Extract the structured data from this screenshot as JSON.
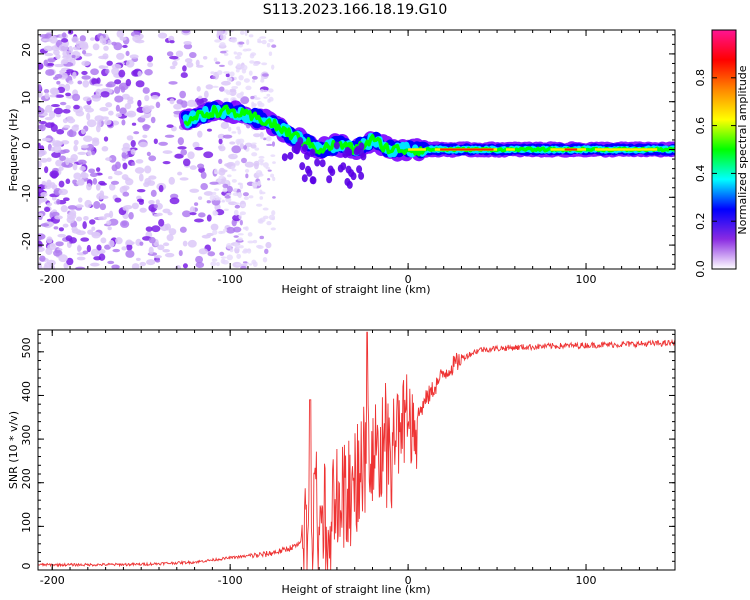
{
  "title": "S113.2023.166.18.19.G10",
  "colors": {
    "snr_line": "#ee3333",
    "axis": "#000000"
  },
  "chart_data": [
    {
      "type": "heatmap",
      "name": "spectrogram",
      "xlabel": "Height of straight line (km)",
      "ylabel": "Frequency (Hz)",
      "xlim": [
        -208,
        150
      ],
      "ylim": [
        -25,
        25
      ],
      "xticks": [
        -200,
        -100,
        0,
        100
      ],
      "xtick_labels": [
        "-200",
        "-100",
        "0",
        "100"
      ],
      "yticks": [
        -20,
        -10,
        0,
        10,
        20
      ],
      "ytick_labels": [
        "-20",
        "-10",
        "0",
        "10",
        "20"
      ],
      "colorbar": {
        "label": "Normalized spectral amplitude",
        "range": [
          0,
          1
        ],
        "ticks": [
          0,
          0.2,
          0.4,
          0.6,
          0.8
        ],
        "tick_labels": [
          "0.0",
          "0.2",
          "0.4",
          "0.6",
          "0.8"
        ],
        "stops": [
          "#ffffff",
          "#8a2be2",
          "#0000ff",
          "#00ffff",
          "#00ff00",
          "#ffff00",
          "#ff8800",
          "#ff0000",
          "#ff1493"
        ]
      },
      "ridge": {
        "description_points_km_hz": [
          [
            -125,
            6
          ],
          [
            -110,
            8
          ],
          [
            -100,
            8
          ],
          [
            -90,
            7
          ],
          [
            -80,
            6
          ],
          [
            -70,
            4
          ],
          [
            -60,
            2
          ],
          [
            -50,
            0
          ],
          [
            -40,
            1
          ],
          [
            -30,
            0
          ],
          [
            -20,
            2
          ],
          [
            -10,
            0
          ],
          [
            0,
            0
          ],
          [
            20,
            0
          ],
          [
            40,
            0
          ],
          [
            60,
            0
          ],
          [
            80,
            0
          ],
          [
            100,
            0
          ],
          [
            120,
            0
          ],
          [
            150,
            0
          ]
        ]
      }
    },
    {
      "type": "line",
      "name": "snr",
      "xlabel": "Height of straight line (km)",
      "ylabel": "SNR (10 * v/v)",
      "xlim": [
        -208,
        150
      ],
      "ylim": [
        0,
        550
      ],
      "xticks": [
        -200,
        -100,
        0,
        100
      ],
      "xtick_labels": [
        "-200",
        "-100",
        "0",
        "100"
      ],
      "yticks": [
        0,
        100,
        200,
        300,
        400,
        500
      ],
      "ytick_labels": [
        "0",
        "100",
        "200",
        "300",
        "400",
        "500"
      ],
      "series": [
        {
          "name": "SNR",
          "x": [
            -208,
            -180,
            -150,
            -120,
            -100,
            -90,
            -80,
            -70,
            -60,
            -55,
            -50,
            -45,
            -40,
            -35,
            -30,
            -25,
            -20,
            -15,
            -10,
            -5,
            0,
            5,
            10,
            15,
            20,
            30,
            40,
            60,
            80,
            100,
            120,
            150
          ],
          "values": [
            12,
            12,
            13,
            18,
            28,
            32,
            36,
            45,
            60,
            75,
            95,
            110,
            140,
            170,
            210,
            250,
            260,
            265,
            280,
            300,
            320,
            350,
            390,
            420,
            450,
            485,
            505,
            510,
            513,
            515,
            517,
            520
          ]
        }
      ]
    }
  ]
}
